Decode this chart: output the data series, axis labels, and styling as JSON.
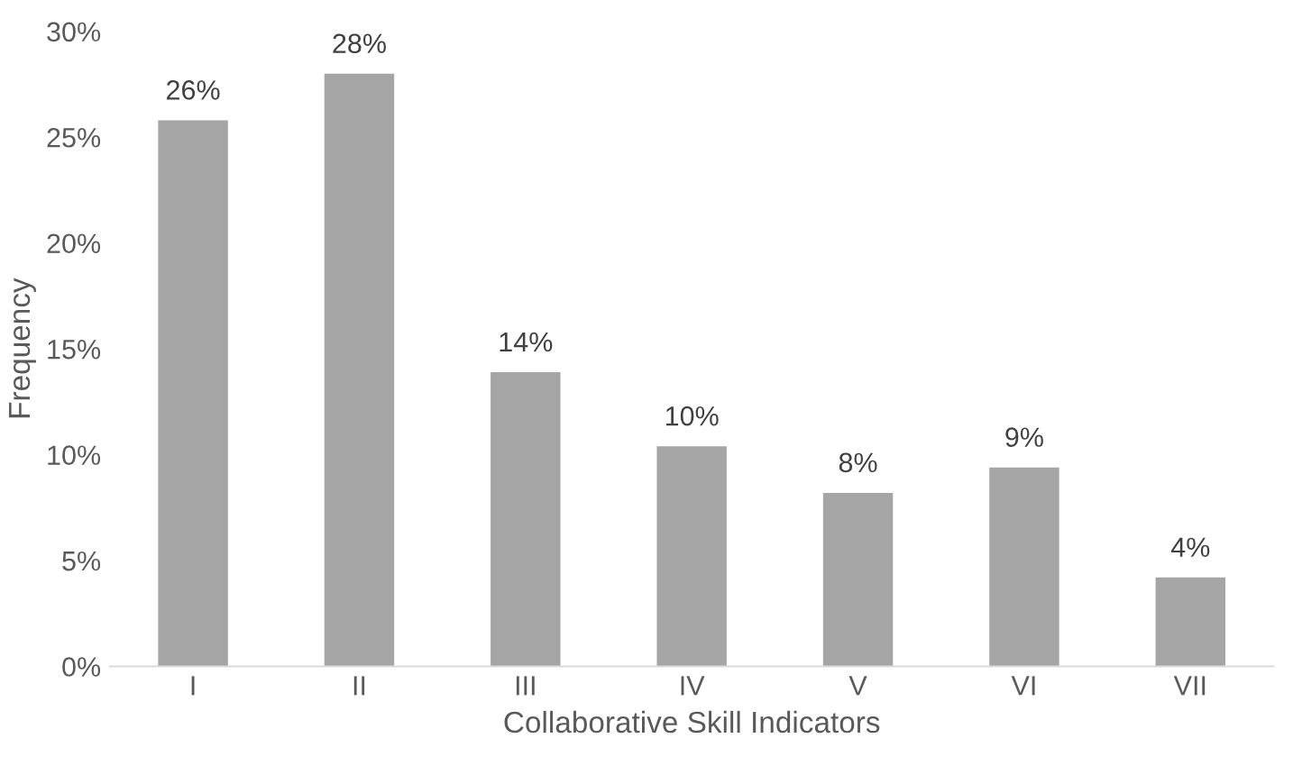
{
  "chart_data": {
    "type": "bar",
    "xlabel": "Collaborative Skill Indicators",
    "ylabel": "Frequency",
    "categories": [
      "I",
      "II",
      "III",
      "IV",
      "V",
      "VI",
      "VII"
    ],
    "values": [
      25.8,
      28.0,
      13.9,
      10.4,
      8.2,
      9.4,
      4.2
    ],
    "value_labels": [
      "26%",
      "28%",
      "14%",
      "10%",
      "8%",
      "9%",
      "4%"
    ],
    "color": "#a5a5a5",
    "ylim": [
      0,
      30
    ],
    "yticks": [
      {
        "value": 0,
        "label": "0%"
      },
      {
        "value": 5,
        "label": "5%"
      },
      {
        "value": 10,
        "label": "10%"
      },
      {
        "value": 15,
        "label": "15%"
      },
      {
        "value": 20,
        "label": "20%"
      },
      {
        "value": 25,
        "label": "25%"
      },
      {
        "value": 30,
        "label": "30%"
      }
    ],
    "grid": false,
    "legend": false
  }
}
